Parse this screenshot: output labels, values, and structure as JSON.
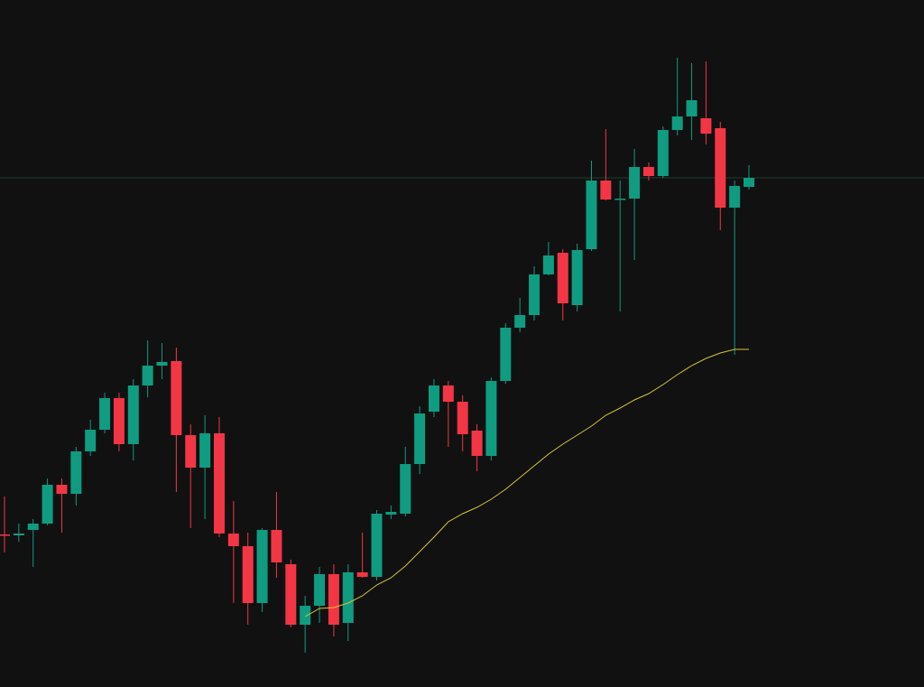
{
  "chart_data": {
    "type": "candlestick",
    "background": "#111111",
    "up_color": "#0f9c81",
    "down_color": "#f23645",
    "price_line": true,
    "price_line_color": "#1d3b31",
    "ylim": [
      0,
      761
    ],
    "open": [
      169,
      168,
      174,
      181,
      224,
      214,
      261,
      285,
      320,
      269,
      334,
      356,
      361,
      279,
      243,
      281,
      170,
      156,
      93,
      174,
      136,
      69,
      90,
      125,
      71,
      127,
      122,
      191,
      192,
      247,
      305,
      334,
      316,
      284,
      256,
      339,
      398,
      412,
      457,
      481,
      423,
      485,
      561,
      540,
      541,
      576,
      566,
      617,
      632,
      630,
      619,
      531,
      554
    ],
    "high": [
      211,
      181,
      186,
      231,
      231,
      266,
      296,
      326,
      326,
      341,
      384,
      381,
      376,
      291,
      301,
      299,
      206,
      171,
      176,
      216,
      141,
      101,
      133,
      136,
      136,
      171,
      196,
      201,
      266,
      311,
      341,
      339,
      323,
      291,
      343,
      403,
      431,
      466,
      493,
      485,
      491,
      583,
      618,
      561,
      596,
      581,
      621,
      697,
      691,
      693,
      626,
      561,
      578
    ],
    "low": [
      149,
      161,
      133,
      179,
      171,
      201,
      256,
      281,
      261,
      251,
      321,
      341,
      216,
      176,
      186,
      166,
      93,
      69,
      83,
      121,
      66,
      38,
      71,
      56,
      51,
      121,
      118,
      186,
      189,
      236,
      299,
      266,
      261,
      239,
      251,
      336,
      393,
      406,
      456,
      406,
      416,
      483,
      539,
      416,
      473,
      561,
      564,
      611,
      606,
      601,
      506,
      368,
      551
    ],
    "close": [
      168,
      170,
      181,
      224,
      214,
      261,
      285,
      320,
      269,
      334,
      356,
      360,
      279,
      243,
      281,
      170,
      156,
      93,
      174,
      138,
      69,
      90,
      125,
      69,
      127,
      122,
      192,
      194,
      247,
      303,
      334,
      316,
      280,
      256,
      339,
      398,
      412,
      457,
      478,
      425,
      484,
      561,
      540,
      541,
      576,
      566,
      617,
      632,
      650,
      613,
      531,
      555,
      564
    ],
    "overlay": {
      "color": "#d8c436",
      "values": [
        null,
        null,
        null,
        null,
        null,
        null,
        null,
        null,
        null,
        null,
        null,
        null,
        null,
        null,
        null,
        null,
        null,
        null,
        null,
        null,
        null,
        78,
        87,
        88,
        93,
        101,
        113,
        121,
        134,
        150,
        166,
        183,
        192,
        199,
        208,
        219,
        232,
        245,
        258,
        269,
        279,
        289,
        301,
        309,
        318,
        325,
        335,
        346,
        356,
        364,
        370,
        374,
        374
      ]
    }
  }
}
